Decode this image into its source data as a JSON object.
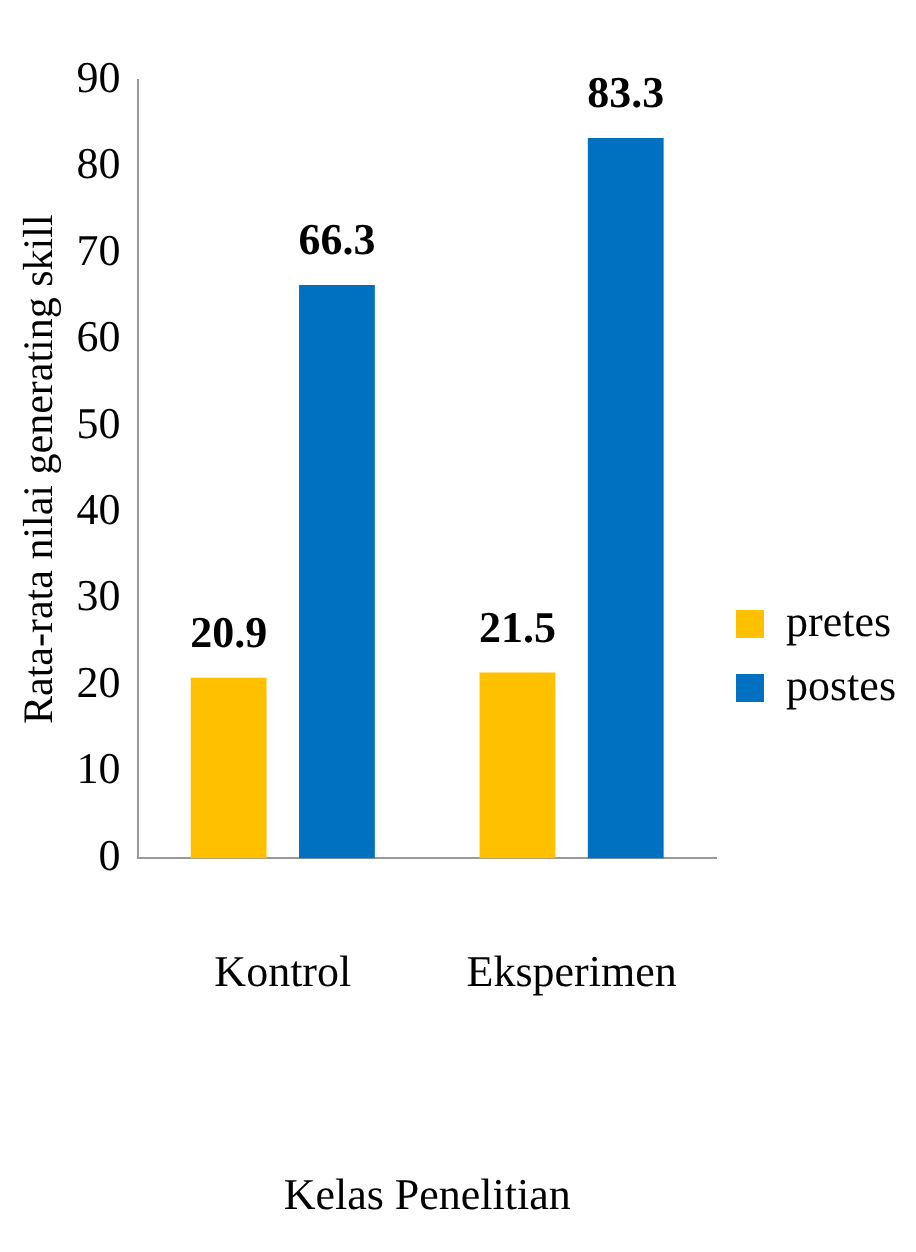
{
  "chart_data": {
    "type": "bar",
    "xlabel": "Kelas Penelitian",
    "ylabel": "Rata-rata nilai generating skill",
    "categories": [
      "Kontrol",
      "Eksperimen"
    ],
    "series": [
      {
        "name": "pretes",
        "color": "#ffc000",
        "values": [
          20.9,
          21.5
        ]
      },
      {
        "name": "postes",
        "color": "#0070c0",
        "values": [
          66.3,
          83.3
        ]
      }
    ],
    "ylim": [
      0,
      90
    ],
    "yticks": [
      0,
      10,
      20,
      30,
      40,
      50,
      60,
      70,
      80,
      90
    ],
    "data_labels": true,
    "legend": "right"
  }
}
